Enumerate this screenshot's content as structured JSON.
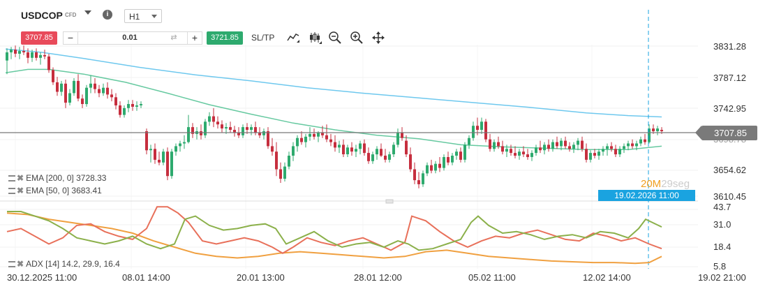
{
  "header": {
    "symbol": "USDCOP",
    "symbol_tag": "CFD",
    "timeframe": "H1",
    "info_icon": "i"
  },
  "trade": {
    "bid": "3707.85",
    "volume": "0.01",
    "ask": "3721.85",
    "sltp_label": "SL/TP",
    "minus": "−",
    "plus": "+",
    "swap": "⇄"
  },
  "tools": [
    "line-chart-icon",
    "candle-chart-icon",
    "zoom-out-icon",
    "zoom-in-icon",
    "move-icon"
  ],
  "price_axis": [
    "3831.28",
    "3787.12",
    "3742.95",
    "3654.62",
    "3610.45"
  ],
  "current_price": "3707.85",
  "hidden_price_partial": "3698.78",
  "indicator_axis": [
    "43.7",
    "31.0",
    "18.4",
    "5.8"
  ],
  "time_axis": [
    "30.12.2025 11:00",
    "08.01 14:00",
    "20.01 13:00",
    "28.01 12:00",
    "05.02 11:00",
    "12.02 14:00",
    "19.02 21:00"
  ],
  "indicators": {
    "ema200": "EMA [200, 0] 3728.33",
    "ema50": "EMA [50, 0] 3683.41",
    "adx": "ADX [14] 14.2, 29.9, 16.4"
  },
  "countdown": {
    "minutes": "20M",
    "seconds": "29seg"
  },
  "crosshair_date": "19.02.2026 11:00",
  "colors": {
    "up": "#2eaa6e",
    "down": "#c62e3e",
    "ema200": "#6ec8ee",
    "ema50": "#66c9a0",
    "adx": "#f0a040",
    "plus_di": "#8bb04a",
    "minus_di": "#e8705a",
    "crosshair": "#1aa3e0"
  }
}
